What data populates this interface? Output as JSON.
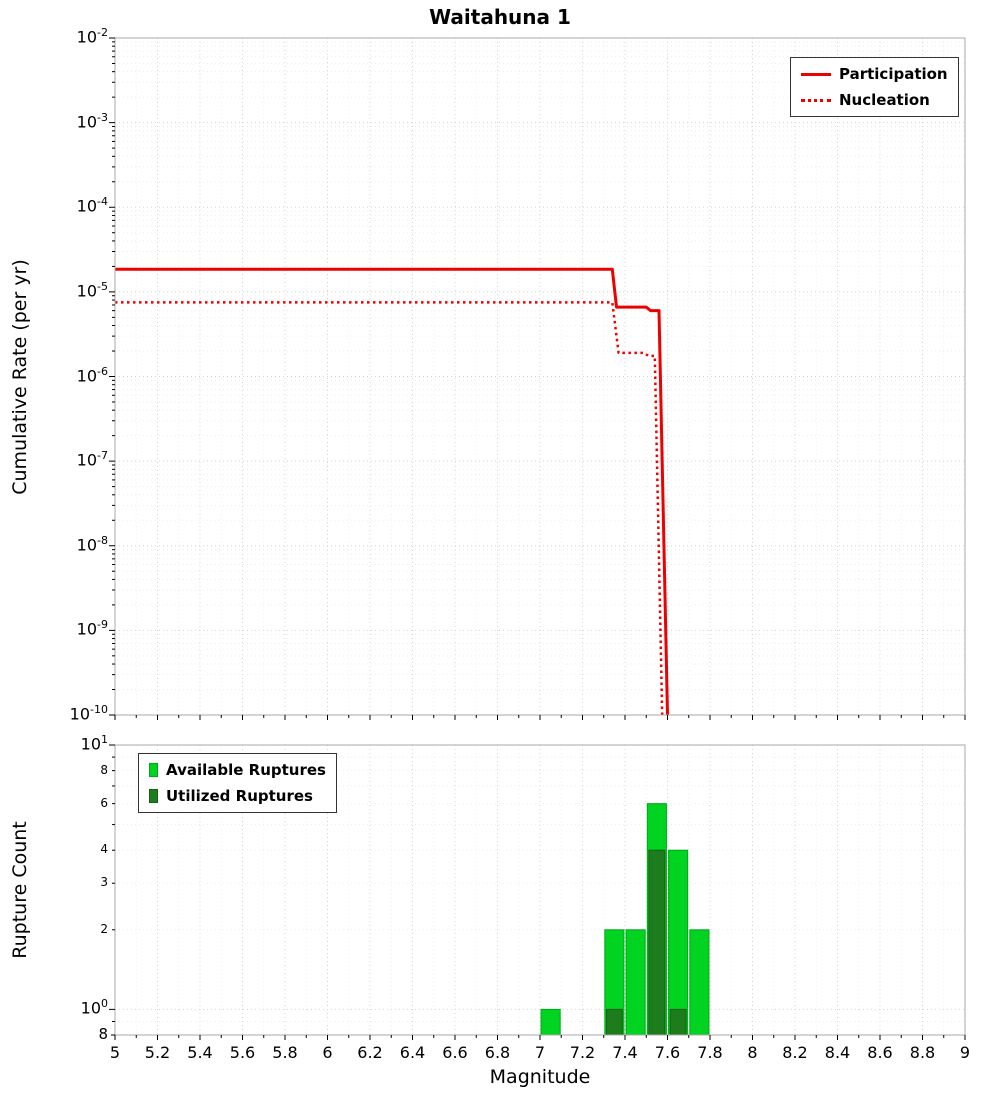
{
  "labels": {
    "title": "Waitahuna 1",
    "xlabel": "Magnitude",
    "top_ylabel": "Cumulative Rate (per yr)",
    "bottom_ylabel": "Rupture Count",
    "legend_participation": "Participation",
    "legend_nucleation": "Nucleation",
    "legend_available": "Available Ruptures",
    "legend_utilized": "Utilized Ruptures"
  },
  "colors": {
    "line": "#ee0000",
    "available": "#00d420",
    "available_edge": "#00a818",
    "utilized": "#1d7d1d",
    "utilized_edge": "#156015",
    "grid_major": "#d4d4d4",
    "grid_minor": "#ededed",
    "frame": "#aaaaaa"
  },
  "chart_data": [
    {
      "type": "line",
      "title": "Waitahuna 1",
      "xlabel": "Magnitude",
      "ylabel": "Cumulative Rate (per yr)",
      "xlim": [
        5,
        9
      ],
      "ylim_log10": [
        -10,
        -2
      ],
      "yscale": "log",
      "grid": true,
      "legend_position": "top-right",
      "y_tick_exponents": [
        -2,
        -3,
        -4,
        -5,
        -6,
        -7,
        -8,
        -9,
        -10
      ],
      "series": [
        {
          "name": "Participation",
          "style": "solid",
          "color": "#ee0000",
          "width": 3,
          "points": [
            [
              5.0,
              1.85e-05
            ],
            [
              7.34,
              1.85e-05
            ],
            [
              7.36,
              6.6e-06
            ],
            [
              7.5,
              6.6e-06
            ],
            [
              7.52,
              6e-06
            ],
            [
              7.56,
              6e-06
            ],
            [
              7.6,
              1e-10
            ]
          ]
        },
        {
          "name": "Nucleation",
          "style": "dotted",
          "color": "#ee0000",
          "width": 2.5,
          "points": [
            [
              5.0,
              7.5e-06
            ],
            [
              7.34,
              7.5e-06
            ],
            [
              7.37,
              1.9e-06
            ],
            [
              7.49,
              1.9e-06
            ],
            [
              7.51,
              1.75e-06
            ],
            [
              7.54,
              1.75e-06
            ],
            [
              7.575,
              1e-10
            ]
          ]
        }
      ]
    },
    {
      "type": "bar",
      "ylabel": "Rupture Count",
      "xlabel": "Magnitude",
      "xlim": [
        5,
        9
      ],
      "ylim": [
        0.8,
        10
      ],
      "yscale": "log",
      "grid": true,
      "legend_position": "top-left",
      "bar_width_available": 0.09,
      "bar_width_utilized": 0.075,
      "categories": [
        7.05,
        7.35,
        7.45,
        7.55,
        7.65,
        7.75
      ],
      "series": [
        {
          "name": "Available Ruptures",
          "values": [
            1,
            2,
            2,
            6,
            4,
            2
          ]
        },
        {
          "name": "Utilized Ruptures",
          "values": [
            0,
            1,
            0,
            4,
            1,
            0
          ]
        }
      ],
      "x_tick_labels": [
        "5",
        "5.2",
        "5.4",
        "5.6",
        "5.8",
        "6",
        "6.2",
        "6.4",
        "6.6",
        "6.8",
        "7",
        "7.2",
        "7.4",
        "7.6",
        "7.8",
        "8",
        "8.2",
        "8.4",
        "8.6",
        "8.8",
        "9"
      ],
      "y_ticks": {
        "major": [
          {
            "value": 10,
            "exp": 1
          },
          {
            "value": 1,
            "exp": 0
          }
        ],
        "labeled_minors": [
          {
            "value": 8,
            "label": "8"
          },
          {
            "value": 6,
            "label": "6"
          },
          {
            "value": 4,
            "label": "4"
          },
          {
            "value": 3,
            "label": "3"
          },
          {
            "value": 2,
            "label": "2"
          }
        ],
        "edge_label": {
          "value": 0.8,
          "label": "8"
        }
      }
    }
  ]
}
